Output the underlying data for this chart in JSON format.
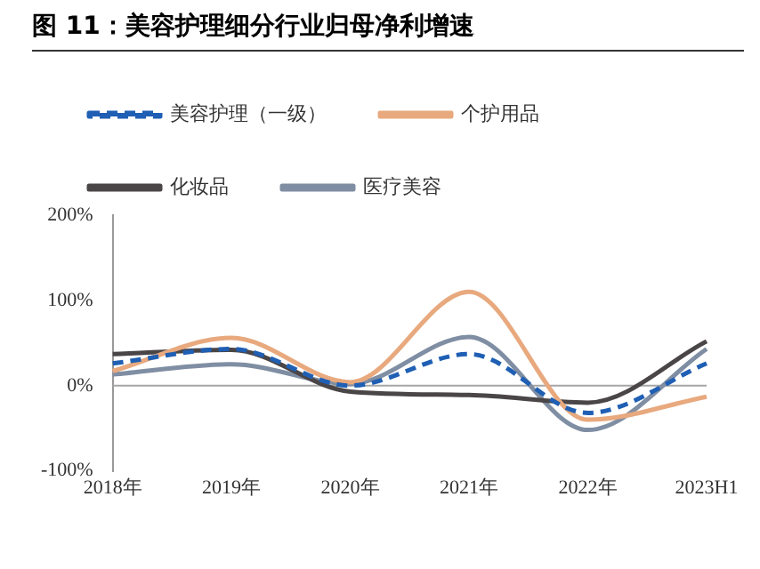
{
  "chart_data": {
    "type": "line",
    "title": "图 11：美容护理细分行业归母净利增速",
    "categories": [
      "2018年",
      "2019年",
      "2020年",
      "2021年",
      "2022年",
      "2023H1"
    ],
    "series": [
      {
        "name": "美容护理（一级）",
        "color": "#1f5fb4",
        "line_style": "dashed",
        "values": [
          26,
          43,
          0,
          37,
          -32,
          26
        ]
      },
      {
        "name": "个护用品",
        "color": "#e8a97e",
        "values": [
          17,
          56,
          4,
          110,
          -40,
          -13
        ]
      },
      {
        "name": "化妆品",
        "color": "#4a4546",
        "values": [
          37,
          42,
          -7,
          -11,
          -20,
          52
        ]
      },
      {
        "name": "医疗美容",
        "color": "#7f8ea3",
        "values": [
          13,
          25,
          2,
          57,
          -52,
          43
        ]
      }
    ],
    "ylim": [
      -100,
      200
    ],
    "yticks": [
      {
        "value": -100,
        "label": "-100%"
      },
      {
        "value": 0,
        "label": "0%"
      },
      {
        "value": 100,
        "label": "100%"
      },
      {
        "value": 200,
        "label": "200%"
      }
    ],
    "ref_lines": [
      {
        "axis": "y",
        "value": 0,
        "color": "#a6a6a6"
      }
    ],
    "grid": false,
    "legend": "top",
    "marker": "none",
    "line_style": "solid"
  }
}
